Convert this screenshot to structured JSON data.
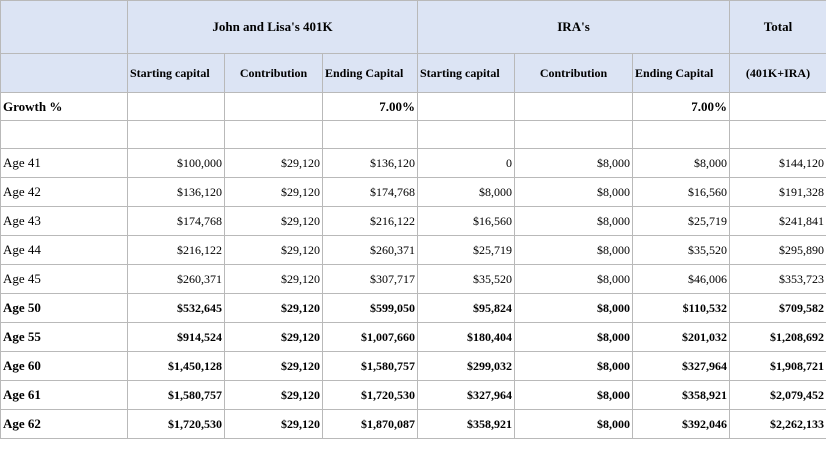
{
  "headers": {
    "group_401k": "John and Lisa's 401K",
    "group_ira": "IRA's",
    "group_total": "Total",
    "starting_capital": "Starting capital",
    "contribution": "Contribution",
    "ending_capital": "Ending Capital",
    "total_sub": "(401K+IRA)"
  },
  "growth": {
    "label": "Growth %",
    "k401_rate": "7.00%",
    "ira_rate": "7.00%"
  },
  "rows": [
    {
      "age": "Age 41",
      "bold": false,
      "k_start": "$100,000",
      "k_contrib": "$29,120",
      "k_end": "$136,120",
      "i_start": "0",
      "i_contrib": "$8,000",
      "i_end": "$8,000",
      "total": "$144,120"
    },
    {
      "age": "Age 42",
      "bold": false,
      "k_start": "$136,120",
      "k_contrib": "$29,120",
      "k_end": "$174,768",
      "i_start": "$8,000",
      "i_contrib": "$8,000",
      "i_end": "$16,560",
      "total": "$191,328"
    },
    {
      "age": "Age 43",
      "bold": false,
      "k_start": "$174,768",
      "k_contrib": "$29,120",
      "k_end": "$216,122",
      "i_start": "$16,560",
      "i_contrib": "$8,000",
      "i_end": "$25,719",
      "total": "$241,841"
    },
    {
      "age": "Age 44",
      "bold": false,
      "k_start": "$216,122",
      "k_contrib": "$29,120",
      "k_end": "$260,371",
      "i_start": "$25,719",
      "i_contrib": "$8,000",
      "i_end": "$35,520",
      "total": "$295,890"
    },
    {
      "age": "Age 45",
      "bold": false,
      "k_start": "$260,371",
      "k_contrib": "$29,120",
      "k_end": "$307,717",
      "i_start": "$35,520",
      "i_contrib": "$8,000",
      "i_end": "$46,006",
      "total": "$353,723"
    },
    {
      "age": "Age 50",
      "bold": true,
      "k_start": "$532,645",
      "k_contrib": "$29,120",
      "k_end": "$599,050",
      "i_start": "$95,824",
      "i_contrib": "$8,000",
      "i_end": "$110,532",
      "total": "$709,582"
    },
    {
      "age": "Age 55",
      "bold": true,
      "k_start": "$914,524",
      "k_contrib": "$29,120",
      "k_end": "$1,007,660",
      "i_start": "$180,404",
      "i_contrib": "$8,000",
      "i_end": "$201,032",
      "total": "$1,208,692"
    },
    {
      "age": "Age 60",
      "bold": true,
      "k_start": "$1,450,128",
      "k_contrib": "$29,120",
      "k_end": "$1,580,757",
      "i_start": "$299,032",
      "i_contrib": "$8,000",
      "i_end": "$327,964",
      "total": "$1,908,721"
    },
    {
      "age": "Age 61",
      "bold": true,
      "k_start": "$1,580,757",
      "k_contrib": "$29,120",
      "k_end": "$1,720,530",
      "i_start": "$327,964",
      "i_contrib": "$8,000",
      "i_end": "$358,921",
      "total": "$2,079,452"
    },
    {
      "age": "Age 62",
      "bold": true,
      "k_start": "$1,720,530",
      "k_contrib": "$29,120",
      "k_end": "$1,870,087",
      "i_start": "$358,921",
      "i_contrib": "$8,000",
      "i_end": "$392,046",
      "total": "$2,262,133"
    }
  ]
}
